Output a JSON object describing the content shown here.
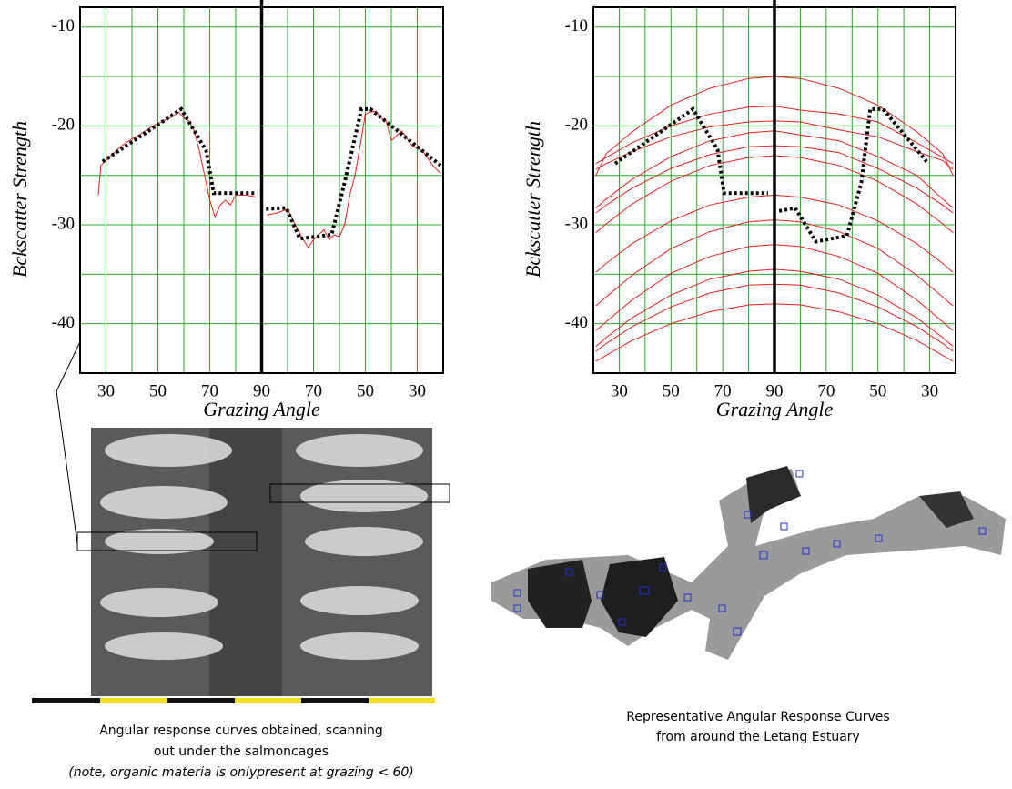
{
  "chart_data": [
    {
      "type": "line",
      "xlabel": "Grazing Angle",
      "ylabel": "Bckscatter Strength",
      "xlim": [
        20,
        160
      ],
      "ylim": [
        -45,
        -8
      ],
      "xticks": [
        30,
        50,
        70,
        {
          "value": 90,
          "label": "90"
        },
        {
          "value": 110,
          "label": "70"
        },
        {
          "value": 130,
          "label": "50"
        },
        {
          "value": 150,
          "label": "30"
        }
      ],
      "xminor": [
        20,
        40,
        60,
        80,
        100,
        120,
        140,
        160
      ],
      "yticks": [
        -10,
        -20,
        -30,
        -40
      ],
      "yminor": [
        -15,
        -25,
        -35,
        -45
      ],
      "grid": true,
      "grid_color": "#2aa82a",
      "divider_x": 90,
      "series": [
        {
          "color": "#e02020",
          "linestyle": "solid",
          "x": [
            27,
            28,
            32,
            36,
            40,
            44,
            48,
            52,
            56,
            58,
            60,
            62,
            64,
            66,
            68,
            70,
            72,
            74,
            76,
            78,
            80,
            84,
            88,
            null,
            92,
            96,
            100,
            102,
            104,
            106,
            108,
            110,
            112,
            114,
            116,
            118,
            120,
            122,
            124,
            126,
            128,
            130,
            132,
            134,
            136,
            138,
            140,
            144,
            148,
            152,
            156,
            159
          ],
          "values": [
            -27,
            -24,
            -23,
            -22,
            -21.3,
            -20.7,
            -20,
            -19.5,
            -19,
            -18.6,
            -19.2,
            -19.5,
            -20.5,
            -22.5,
            -25,
            -27.5,
            -29.2,
            -28,
            -27.5,
            -28,
            -27,
            -27,
            -27.2,
            null,
            -29,
            -28.8,
            -28.4,
            -29.5,
            -30.5,
            -31.5,
            -32.3,
            -31.5,
            -31,
            -30.5,
            -31.5,
            -31,
            -31.2,
            -30,
            -27,
            -25,
            -22,
            -18.8,
            -18.6,
            -18.5,
            -19.2,
            -19.5,
            -21.5,
            -20.5,
            -22,
            -22.5,
            -24,
            -24.8
          ]
        },
        {
          "color": "#000000",
          "linestyle": "dotted",
          "x": [
            28.7,
            59,
            68.6,
            71.5,
            88.2,
            null,
            91.7,
            99.5,
            104.7,
            117,
            122,
            128.5,
            132,
            159
          ],
          "values": [
            -23.6,
            -18.3,
            -22.5,
            -26.8,
            -26.8,
            null,
            -28.4,
            -28.3,
            -31.4,
            -31,
            -25.7,
            -18.3,
            -18.3,
            -24
          ]
        }
      ]
    },
    {
      "type": "line",
      "xlabel": "Grazing Angle",
      "ylabel": "Bckscatter Strength",
      "xlim": [
        20,
        160
      ],
      "ylim": [
        -45,
        -8
      ],
      "xticks": [
        30,
        50,
        70,
        {
          "value": 90,
          "label": "90"
        },
        {
          "value": 110,
          "label": "70"
        },
        {
          "value": 130,
          "label": "50"
        },
        {
          "value": 150,
          "label": "30"
        }
      ],
      "xminor": [
        20,
        40,
        60,
        80,
        100,
        120,
        140,
        160
      ],
      "yticks": [
        -10,
        -20,
        -30,
        -40
      ],
      "yminor": [
        -15,
        -25,
        -35,
        -45
      ],
      "grid": true,
      "grid_color": "#2aa82a",
      "divider_x": 90,
      "x": [
        21,
        25,
        35,
        50,
        65,
        80,
        90,
        100,
        115,
        130,
        145,
        155,
        159
      ],
      "series": [
        {
          "color": "#e02020",
          "linestyle": "solid",
          "values": [
            -25,
            -22.8,
            -20.6,
            -17.9,
            -16.2,
            -15.2,
            -15,
            -15.2,
            -16.2,
            -17.9,
            -20.6,
            -22.8,
            -25
          ]
        },
        {
          "color": "#e02020",
          "linestyle": "solid",
          "values": [
            -23.8,
            -23.2,
            -21.7,
            -20,
            -18.8,
            -18.1,
            -18,
            -18.4,
            -18.8,
            -19.6,
            -21.7,
            -23.2,
            -23.8
          ]
        },
        {
          "color": "#e02020",
          "linestyle": "solid",
          "values": [
            -24.4,
            -23.8,
            -22.6,
            -21.1,
            -20.1,
            -19.6,
            -19.5,
            -19.6,
            -20.4,
            -21.1,
            -22.6,
            -23.5,
            -24.4
          ]
        },
        {
          "color": "#e02020",
          "linestyle": "solid",
          "values": [
            -28.3,
            -27.4,
            -25.4,
            -23.1,
            -21.5,
            -20.7,
            -20.5,
            -20.9,
            -21.5,
            -23.1,
            -25,
            -27.4,
            -28.3
          ]
        },
        {
          "color": "#e02020",
          "linestyle": "solid",
          "values": [
            -28.8,
            -28,
            -26.3,
            -24.3,
            -22.9,
            -22.1,
            -22,
            -22.1,
            -22.7,
            -24.3,
            -26.3,
            -28,
            -28.8
          ]
        },
        {
          "color": "#e02020",
          "linestyle": "solid",
          "values": [
            -30.8,
            -29.9,
            -27.9,
            -25.6,
            -24,
            -23.2,
            -23,
            -23.2,
            -24,
            -25.6,
            -27.9,
            -29.9,
            -30.8
          ]
        },
        {
          "color": "#e02020",
          "linestyle": "solid",
          "values": [
            -34.8,
            -33.9,
            -31.9,
            -29.6,
            -28,
            -27.2,
            -27,
            -27.2,
            -28,
            -29.6,
            -31.9,
            -33.9,
            -34.8
          ]
        },
        {
          "color": "#e02020",
          "linestyle": "solid",
          "values": [
            -38.2,
            -37.3,
            -35.1,
            -32.4,
            -30.7,
            -29.7,
            -29.5,
            -29.7,
            -30.7,
            -32.4,
            -35.1,
            -37.3,
            -38.2
          ]
        },
        {
          "color": "#e02020",
          "linestyle": "solid",
          "values": [
            -40.7,
            -39.8,
            -37.6,
            -34.9,
            -33.2,
            -32.2,
            -32,
            -32.2,
            -33.2,
            -34.9,
            -37.6,
            -39.8,
            -40.7
          ]
        },
        {
          "color": "#e02020",
          "linestyle": "solid",
          "values": [
            -42.3,
            -41.4,
            -39.4,
            -37.1,
            -35.5,
            -34.7,
            -34.5,
            -34.7,
            -35.5,
            -37.1,
            -39.4,
            -41.4,
            -42.3
          ]
        },
        {
          "color": "#e02020",
          "linestyle": "solid",
          "values": [
            -42.8,
            -42,
            -40.3,
            -38.3,
            -36.9,
            -36.1,
            -36,
            -36.1,
            -36.9,
            -38.3,
            -40.3,
            -42,
            -42.8
          ]
        },
        {
          "color": "#e02020",
          "linestyle": "solid",
          "values": [
            -43.8,
            -43.2,
            -41.7,
            -40,
            -38.8,
            -38.1,
            -38,
            -38.1,
            -38.8,
            -40,
            -41.7,
            -43.2,
            -43.8
          ]
        },
        {
          "color": "#000000",
          "linestyle": "dotted",
          "x": [
            28.4,
            58.5,
            68,
            70.5,
            87.5,
            null,
            91.8,
            98,
            106,
            118,
            123.6,
            127,
            132,
            148.8
          ],
          "values": [
            -23.8,
            -18.3,
            -22.4,
            -26.8,
            -26.8,
            null,
            -28.6,
            -28.3,
            -31.7,
            -31.1,
            -25.7,
            -18.3,
            -18.3,
            -23.6
          ]
        }
      ]
    }
  ],
  "captions": {
    "left": [
      "Angular response curves obtained, scanning",
      "out under  the salmoncages",
      "(note, organic materia is onlypresent at grazing < 60)"
    ],
    "right": [
      "Representative Angular Response Curves",
      "from around the Letang Estuary"
    ]
  }
}
